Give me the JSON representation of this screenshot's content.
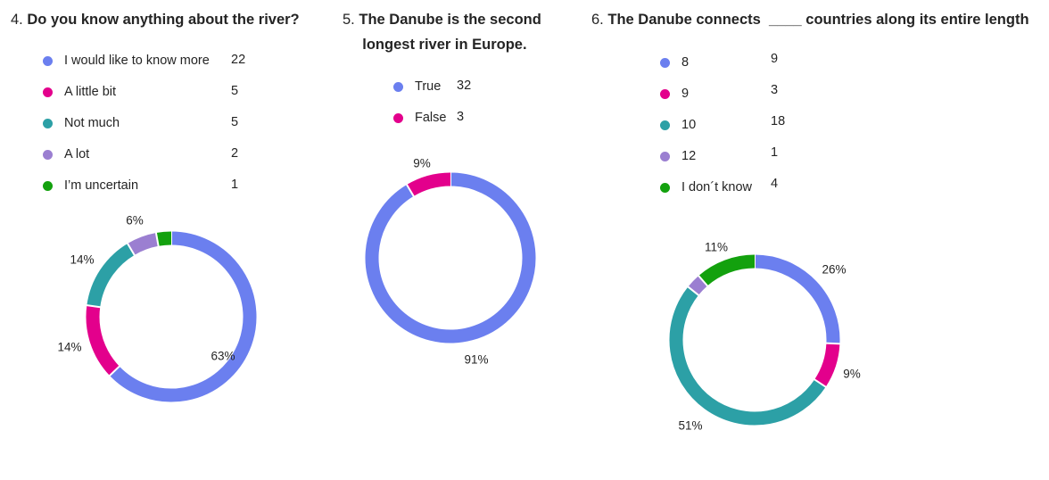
{
  "questions": [
    {
      "number": "4.",
      "title": "Do you know anything about the river?",
      "legend": [
        {
          "label": "I would like to know more",
          "count": "22",
          "color": "#6b7fef"
        },
        {
          "label": "A little bit",
          "count": "5",
          "color": "#e3008c"
        },
        {
          "label": "Not much",
          "count": "5",
          "color": "#2ca0a6"
        },
        {
          "label": "A lot",
          "count": "2",
          "color": "#9b7fd1"
        },
        {
          "label": "I’m uncertain",
          "count": "1",
          "color": "#13a10e"
        }
      ]
    },
    {
      "number": "5.",
      "title_line1": "The Danube is the second",
      "title_line2": "longest river in Europe.",
      "legend": [
        {
          "label": "True",
          "count": "32",
          "color": "#6b7fef"
        },
        {
          "label": "False",
          "count": "3",
          "color": "#e3008c"
        }
      ]
    },
    {
      "number": "6.",
      "title": "The Danube connects  ____ countries along its entire length",
      "legend": [
        {
          "label": "8",
          "count": "9",
          "color": "#6b7fef"
        },
        {
          "label": "9",
          "count": "3",
          "color": "#e3008c"
        },
        {
          "label": "10",
          "count": "18",
          "color": "#2ca0a6"
        },
        {
          "label": "12",
          "count": "1",
          "color": "#9b7fd1"
        },
        {
          "label": "I don´t know",
          "count": "4",
          "color": "#13a10e"
        }
      ]
    }
  ],
  "chart_data": [
    {
      "type": "pie",
      "title": "Do you know anything about the river?",
      "categories": [
        "I would like to know more",
        "A little bit",
        "Not much",
        "A lot",
        "I’m uncertain"
      ],
      "values": [
        22,
        5,
        5,
        2,
        1
      ],
      "percent_labels": [
        "63%",
        "14%",
        "14%",
        "6%",
        ""
      ],
      "colors": [
        "#6b7fef",
        "#e3008c",
        "#2ca0a6",
        "#9b7fd1",
        "#13a10e"
      ]
    },
    {
      "type": "pie",
      "title": "The Danube is the second longest river in Europe.",
      "categories": [
        "True",
        "False"
      ],
      "values": [
        32,
        3
      ],
      "percent_labels": [
        "91%",
        "9%"
      ],
      "colors": [
        "#6b7fef",
        "#e3008c"
      ]
    },
    {
      "type": "pie",
      "title": "The Danube connects  ____ countries along its entire length",
      "categories": [
        "8",
        "9",
        "10",
        "12",
        "I don´t know"
      ],
      "values": [
        9,
        3,
        18,
        1,
        4
      ],
      "percent_labels": [
        "26%",
        "9%",
        "51%",
        "",
        "11%"
      ],
      "colors": [
        "#6b7fef",
        "#e3008c",
        "#2ca0a6",
        "#9b7fd1",
        "#13a10e"
      ]
    }
  ]
}
